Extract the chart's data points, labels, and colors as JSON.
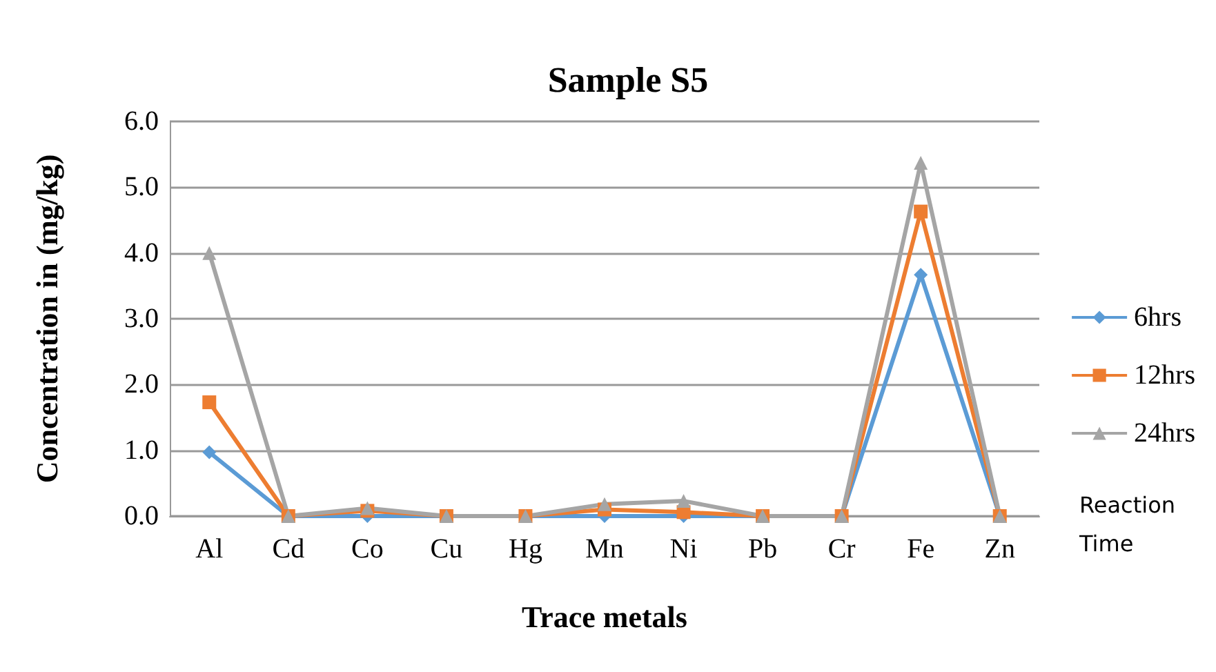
{
  "chart_data": {
    "type": "line",
    "title": "Sample S5",
    "xlabel": "Trace metals",
    "ylabel": "Concentration in (mg/kg)",
    "legend_title": "Reaction Time",
    "categories": [
      "Al",
      "Cd",
      "Co",
      "Cu",
      "Hg",
      "Mn",
      "Ni",
      "Pb",
      "Cr",
      "Fe",
      "Zn"
    ],
    "series": [
      {
        "name": "6hrs",
        "color": "#5b9bd5",
        "marker": "diamond",
        "values": [
          0.97,
          0,
          0,
          0,
          0,
          0,
          0,
          0,
          0,
          3.67,
          0
        ]
      },
      {
        "name": "12hrs",
        "color": "#ed7d31",
        "marker": "square",
        "values": [
          1.73,
          0,
          0.08,
          0,
          0,
          0.1,
          0.06,
          0,
          0,
          4.63,
          0
        ]
      },
      {
        "name": "24hrs",
        "color": "#a5a5a5",
        "marker": "triangle",
        "values": [
          4.0,
          0,
          0.12,
          0,
          0,
          0.18,
          0.23,
          0,
          0,
          5.37,
          0
        ]
      }
    ],
    "ylim": [
      0,
      6
    ],
    "yticks": [
      {
        "value": 0,
        "label": "0.0"
      },
      {
        "value": 1,
        "label": "1.0"
      },
      {
        "value": 2,
        "label": "2.0"
      },
      {
        "value": 3,
        "label": "3.0"
      },
      {
        "value": 4,
        "label": "4.0"
      },
      {
        "value": 5,
        "label": "5.0"
      },
      {
        "value": 6,
        "label": "6.0"
      }
    ],
    "grid": "y",
    "legend": "right"
  }
}
